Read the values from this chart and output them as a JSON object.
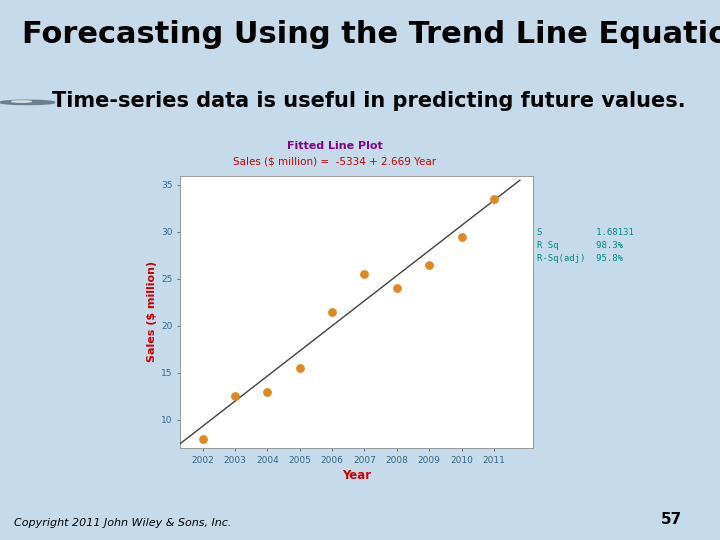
{
  "title": "Forecasting Using the Trend Line Equation",
  "subtitle": "Time-series data is useful in predicting future values.",
  "bg_color": "#c5daea",
  "chart_title": "Fitted Line Plot",
  "chart_equation": "Sales ($ million) =  -5334 + 2.669 Year",
  "xlabel": "Year",
  "ylabel": "Sales ($ million)",
  "years": [
    2002,
    2003,
    2004,
    2005,
    2006,
    2007,
    2008,
    2009,
    2010,
    2011
  ],
  "sales": [
    8.0,
    12.5,
    13.0,
    15.5,
    21.5,
    25.5,
    24.0,
    26.5,
    29.5,
    33.5
  ],
  "intercept": -5334,
  "slope": 2.669,
  "dot_color": "#e08820",
  "line_color": "#404040",
  "stats_S": "1.68131",
  "stats_Rsq": "98.3%",
  "stats_Rsqadj": "95.8%",
  "ylabel_color": "#cc0000",
  "xlabel_color": "#cc0000",
  "chart_title_color": "#880088",
  "chart_eq_color": "#cc0000",
  "stats_color": "#008888",
  "copyright": "Copyright 2011 John Wiley & Sons, Inc.",
  "page_num": "57",
  "ylim": [
    7,
    36
  ],
  "yticks": [
    10,
    15,
    20,
    25,
    30,
    35
  ],
  "title_fontsize": 22,
  "subtitle_fontsize": 15
}
